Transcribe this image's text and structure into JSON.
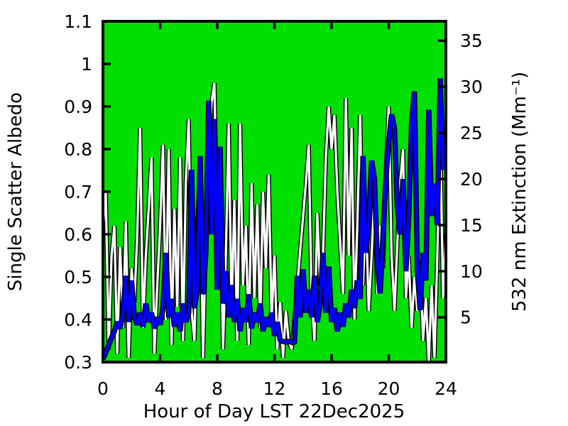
{
  "figure": {
    "background": "#ffffff"
  },
  "chart_data": {
    "type": "line",
    "title": "",
    "xlabel": "Hour of Day LST 22Dec2025",
    "plot_background": "#00e000",
    "frame_color": "#000000",
    "grid": false,
    "legend": "none",
    "x_axis": {
      "range": [
        0,
        24
      ],
      "ticks": [
        0,
        4,
        8,
        12,
        16,
        20,
        24
      ],
      "tick_labels": [
        "0",
        "4",
        "8",
        "12",
        "16",
        "20",
        "24"
      ]
    },
    "y_left_axis": {
      "label": "Single Scatter Albedo",
      "color": "#000000",
      "range": [
        0.3,
        1.1
      ],
      "ticks": [
        0.3,
        0.4,
        0.5,
        0.6,
        0.7,
        0.8,
        0.9,
        1,
        1.1
      ],
      "tick_labels": [
        "0.3",
        "0.4",
        "0.5",
        "0.6",
        "0.7",
        "0.8",
        "0.9",
        "1",
        "1.1"
      ]
    },
    "y_right_axis": {
      "label": "532 nm Extinction (Mm⁻¹)",
      "color": "#0000ff",
      "range": [
        0.15,
        37.1
      ],
      "ticks": [
        5,
        10,
        15,
        20,
        25,
        30,
        35
      ],
      "tick_labels": [
        "5",
        "10",
        "15",
        "20",
        "25",
        "30",
        "35"
      ]
    },
    "series": [
      {
        "name": "Single Scatter Albedo",
        "slug": "albedo-line",
        "axis": "left",
        "color": "#ffffff",
        "outline_color": "#000000",
        "core_width": 3.2,
        "outline_width": 6,
        "x_start": 0,
        "x_step": 0.2,
        "values": [
          0.62,
          0.7,
          0.33,
          0.55,
          0.62,
          0.32,
          0.57,
          0.38,
          0.63,
          0.31,
          0.52,
          0.44,
          0.6,
          0.85,
          0.38,
          0.55,
          0.66,
          0.78,
          0.32,
          0.48,
          0.62,
          0.81,
          0.4,
          0.8,
          0.34,
          0.66,
          0.43,
          0.78,
          0.35,
          0.72,
          0.87,
          0.42,
          0.35,
          0.62,
          0.75,
          0.31,
          0.58,
          0.8,
          0.91,
          0.955,
          0.6,
          0.72,
          0.33,
          0.55,
          0.86,
          0.42,
          0.68,
          0.35,
          0.86,
          0.48,
          0.62,
          0.34,
          0.72,
          0.45,
          0.67,
          0.38,
          0.7,
          0.52,
          0.74,
          0.4,
          0.55,
          0.33,
          0.44,
          0.31,
          0.42,
          0.35,
          0.33,
          0.4,
          0.48,
          0.56,
          0.64,
          0.72,
          0.81,
          0.45,
          0.35,
          0.65,
          0.48,
          0.55,
          0.78,
          0.9,
          0.8,
          0.88,
          0.7,
          0.58,
          0.46,
          0.92,
          0.55,
          0.85,
          0.4,
          0.62,
          0.88,
          0.48,
          0.66,
          0.42,
          0.55,
          0.7,
          0.46,
          0.62,
          0.52,
          0.75,
          0.9,
          0.55,
          0.42,
          0.58,
          0.72,
          0.8,
          0.45,
          0.55,
          0.38,
          0.5,
          0.42,
          0.55,
          0.35,
          0.45,
          0.3,
          0.48,
          0.31,
          0.55,
          0.84,
          0.45,
          0.6
        ]
      },
      {
        "name": "532 nm Extinction",
        "slug": "extinction-line",
        "axis": "right",
        "color": "#0000ff",
        "outline_color": "#000000",
        "core_width": 4.5,
        "outline_width": 7.5,
        "x_start": 0,
        "x_step": 0.2,
        "values": [
          0.5,
          1.2,
          2.0,
          2.8,
          3.5,
          4.5,
          3.8,
          5.5,
          9.5,
          4.5,
          9.0,
          5.0,
          4.2,
          5.5,
          4.0,
          6.5,
          4.5,
          5.5,
          3.8,
          5.0,
          4.2,
          6.0,
          12.0,
          5.0,
          7.0,
          4.0,
          5.5,
          3.5,
          6.5,
          4.5,
          5.5,
          21.0,
          6.0,
          8.0,
          22.5,
          7.5,
          12.0,
          28.5,
          14.0,
          26.5,
          8.0,
          23.5,
          6.5,
          10.0,
          5.0,
          8.5,
          4.5,
          7.0,
          3.5,
          6.0,
          4.5,
          7.5,
          3.8,
          5.5,
          4.5,
          6.5,
          3.5,
          5.0,
          4.0,
          5.5,
          3.0,
          4.5,
          2.5,
          2.4,
          2.3,
          2.4,
          2.3,
          2.2,
          9.5,
          5.0,
          10.2,
          5.5,
          8.0,
          5.0,
          9.5,
          4.5,
          6.5,
          12.0,
          5.5,
          10.5,
          4.5,
          6.0,
          3.5,
          5.5,
          4.0,
          6.5,
          5.0,
          8.0,
          6.0,
          9.0,
          7.0,
          22.5,
          12.0,
          15.5,
          22.0,
          20.0,
          11.0,
          7.6,
          14.0,
          20.0,
          24.0,
          27.0,
          25.5,
          17.0,
          14.0,
          20.0,
          10.0,
          16.0,
          26.0,
          29.5,
          10.0,
          5.8,
          12.0,
          9.0,
          27.5,
          16.0,
          19.5,
          15.0,
          30.9,
          21.0,
          24.0
        ]
      }
    ]
  }
}
